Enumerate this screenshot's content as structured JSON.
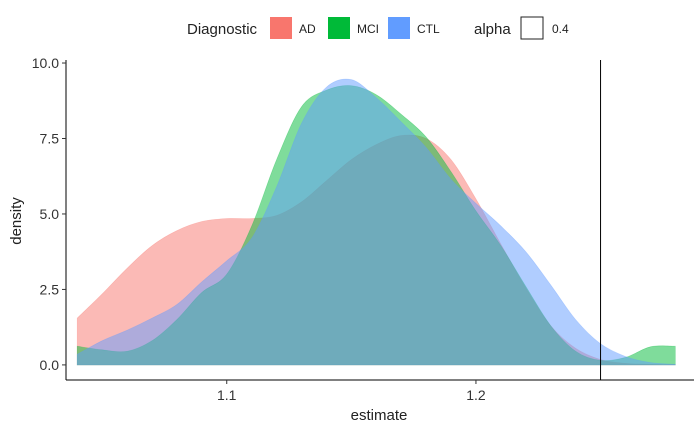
{
  "chart_data": {
    "type": "area",
    "title": "",
    "xlabel": "estimate",
    "ylabel": "density",
    "xlim": [
      1.0355,
      1.2875
    ],
    "ylim": [
      -0.5,
      10.1
    ],
    "x_ticks": [
      1.1,
      1.2
    ],
    "x_tick_labels": [
      "1.1",
      "1.2"
    ],
    "y_ticks": [
      0,
      2.5,
      5,
      7.5,
      10
    ],
    "y_tick_labels": [
      "0.0",
      "2.5",
      "5.0",
      "7.5",
      "10.0"
    ],
    "grid": false,
    "legend": {
      "placement": "top",
      "title": "Diagnostic",
      "alpha_title": "alpha",
      "alpha_value_label": "0.4"
    },
    "fill_alpha": 0.5,
    "series": [
      {
        "name": "AD",
        "color": "#F8766D",
        "x": [
          1.04,
          1.05,
          1.06,
          1.07,
          1.08,
          1.09,
          1.1,
          1.11,
          1.12,
          1.13,
          1.14,
          1.15,
          1.16,
          1.17,
          1.18,
          1.19,
          1.2,
          1.21,
          1.22,
          1.23,
          1.24,
          1.25,
          1.26,
          1.27,
          1.28
        ],
        "y": [
          1.55,
          2.35,
          3.2,
          3.95,
          4.45,
          4.75,
          4.85,
          4.85,
          4.95,
          5.4,
          6.1,
          6.8,
          7.3,
          7.6,
          7.5,
          6.8,
          5.5,
          4.0,
          2.55,
          1.3,
          0.55,
          0.18,
          0.05,
          0.02,
          0.01
        ]
      },
      {
        "name": "MCI",
        "color": "#00BA38",
        "x": [
          1.04,
          1.05,
          1.06,
          1.07,
          1.08,
          1.09,
          1.1,
          1.11,
          1.12,
          1.13,
          1.14,
          1.15,
          1.16,
          1.17,
          1.18,
          1.19,
          1.2,
          1.21,
          1.22,
          1.23,
          1.24,
          1.25,
          1.26,
          1.27,
          1.28
        ],
        "y": [
          0.62,
          0.5,
          0.45,
          0.8,
          1.5,
          2.4,
          3.0,
          4.6,
          6.8,
          8.55,
          9.1,
          9.25,
          8.95,
          8.3,
          7.55,
          6.4,
          5.1,
          3.95,
          2.6,
          1.3,
          0.45,
          0.15,
          0.25,
          0.6,
          0.62
        ]
      },
      {
        "name": "CTL",
        "color": "#619CFF",
        "x": [
          1.04,
          1.05,
          1.06,
          1.07,
          1.08,
          1.09,
          1.1,
          1.11,
          1.12,
          1.13,
          1.14,
          1.15,
          1.16,
          1.17,
          1.18,
          1.19,
          1.2,
          1.21,
          1.22,
          1.23,
          1.24,
          1.25,
          1.26,
          1.27,
          1.28
        ],
        "y": [
          0.35,
          0.8,
          1.15,
          1.55,
          2.0,
          2.75,
          3.45,
          4.2,
          5.9,
          8.0,
          9.2,
          9.45,
          8.85,
          8.05,
          7.2,
          6.15,
          5.35,
          4.6,
          3.75,
          2.65,
          1.5,
          0.7,
          0.28,
          0.08,
          0.02
        ]
      }
    ],
    "vline": {
      "x": 1.25
    }
  }
}
